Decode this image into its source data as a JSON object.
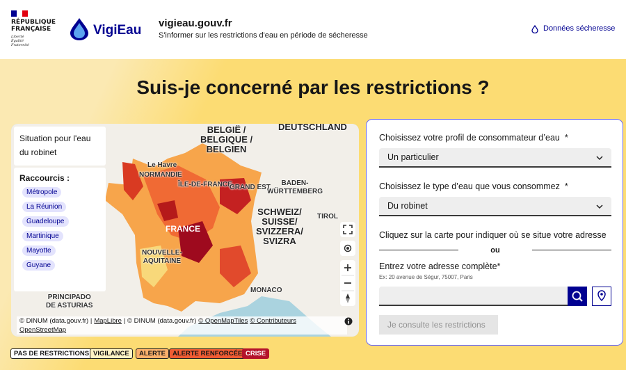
{
  "header": {
    "republic": "RÉPUBLIQUE\nFRANÇAISE",
    "motto": "Liberté\nÉgalité\nFraternité",
    "logo_text": "VigiEau",
    "site_name": "vigieau.gouv.fr",
    "tagline": "S'informer sur les restrictions d'eau en période de sécheresse",
    "link": "Données sécheresse"
  },
  "title": "Suis-je concerné par les restrictions ?",
  "map": {
    "panel_title": "Situation pour l'eau du robinet",
    "shortcuts_label": "Raccourcis :",
    "shortcuts": [
      "Métropole",
      "La Réunion",
      "Guadeloupe",
      "Martinique",
      "Mayotte",
      "Guyane"
    ],
    "labels": [
      "BELGIË /\nBELGIQUE /\nBELGIEN",
      "DEUTSCHLAND",
      "Le Havre",
      "NORMANDIE",
      "ÎLE-DE-FRANCE",
      "GRAND EST",
      "BADEN-\nWÜRTTEMBERG",
      "SCHWEIZ/\nSUISSE/\nSVIZZERA/\nSVIZRA",
      "FRANCE",
      "TIROL",
      "NOUVELLE-\nAQUITAINE",
      "MONACO",
      "PRINCIPADO\nDE ASTURIAS"
    ],
    "attribution": [
      "© DINUM (data.gouv.fr) |",
      "MapLibre",
      "| © DINUM (data.gouv.fr)",
      "© OpenMapTiles",
      "© Contributeurs",
      "OpenStreetMap"
    ]
  },
  "legend": [
    "PAS DE RESTRICTIONS",
    "VIGILANCE",
    "ALERTE",
    "ALERTE RENFORCÉE",
    "CRISE"
  ],
  "form": {
    "profile_label": "Choisissez votre profil de consommateur d’eau",
    "required_mark": "*",
    "profile_value": "Un particulier",
    "water_label": "Choisissez le type d’eau que vous consommez",
    "water_value": "Du robinet",
    "map_hint": "Cliquez sur la carte pour indiquer où se situe votre adresse",
    "separator": "ou",
    "address_label": "Entrez votre adresse complète",
    "address_hint": "Ex: 20 avenue de Ségur, 75007, Paris",
    "submit": "Je consulte les restrictions"
  }
}
